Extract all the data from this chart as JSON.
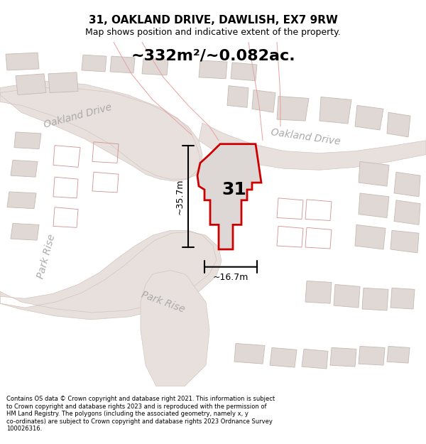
{
  "title": "31, OAKLAND DRIVE, DAWLISH, EX7 9RW",
  "subtitle": "Map shows position and indicative extent of the property.",
  "area_label": "~332m²/~0.082ac.",
  "number_label": "31",
  "dim_height": "~35.7m",
  "dim_width": "~16.7m",
  "footer": "Contains OS data © Crown copyright and database right 2021. This information is subject to Crown copyright and database rights 2023 and is reproduced with the permission of HM Land Registry. The polygons (including the associated geometry, namely x, y co-ordinates) are subject to Crown copyright and database rights 2023 Ordnance Survey 100026316.",
  "bg_color": "#f5f0ee",
  "map_bg": "#f5f0ee",
  "street_color_light": "#e8b0b0",
  "street_color_dark": "#d08080",
  "building_fill": "#e0dada",
  "building_edge": "#c8b8b8",
  "highlight_fill": "#ddd5d5",
  "highlight_edge": "#cc0000",
  "road_fill": "#e8e0dc",
  "road_label_color": "#888888",
  "title_color": "#000000",
  "footer_color": "#000000"
}
